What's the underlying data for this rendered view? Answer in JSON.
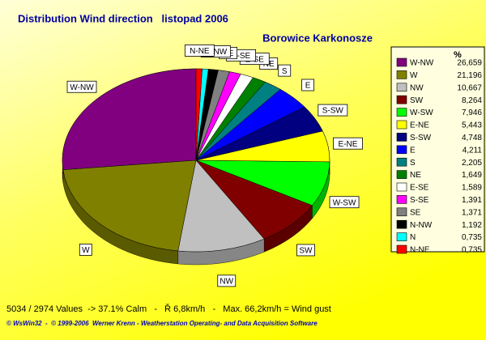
{
  "chart_data": {
    "type": "pie",
    "title": "Distribution Wind direction   listopad 2006",
    "subtitle": "Borowice Karkonosze",
    "legend_title": "%",
    "categories": [
      "W-NW",
      "W",
      "NW",
      "SW",
      "W-SW",
      "E-NE",
      "S-SW",
      "E",
      "S",
      "NE",
      "E-SE",
      "S-SE",
      "SE",
      "N-NW",
      "N",
      "N-NE"
    ],
    "values": [
      26.659,
      21.196,
      10.667,
      8.264,
      7.946,
      5.443,
      4.748,
      4.211,
      2.205,
      1.649,
      1.589,
      1.391,
      1.371,
      1.192,
      0.735,
      0.735
    ],
    "value_labels": [
      "26,659",
      "21,196",
      "10,667",
      "8,264",
      "7,946",
      "5,443",
      "4,748",
      "4,211",
      "2,205",
      "1,649",
      "1,589",
      "1,391",
      "1,371",
      "1,192",
      "0,735",
      "0,735"
    ],
    "colors": [
      "#800080",
      "#808000",
      "#c0c0c0",
      "#800000",
      "#00ff00",
      "#ffff00",
      "#000080",
      "#0000ff",
      "#008080",
      "#008000",
      "#ffffff",
      "#ff00ff",
      "#808080",
      "#000000",
      "#00ffff",
      "#ff0000"
    ],
    "legend_position": "right",
    "annotations": [
      "5034 / 2974 Values  -> 37.1% Calm   -   Ř 6,8km/h   -   Max. 66,2km/h = Wind gust",
      "© WsWin32  -  © 1999-2006  Werner Krenn - Weatherstation Operating- and Data Acquisition Software"
    ]
  }
}
